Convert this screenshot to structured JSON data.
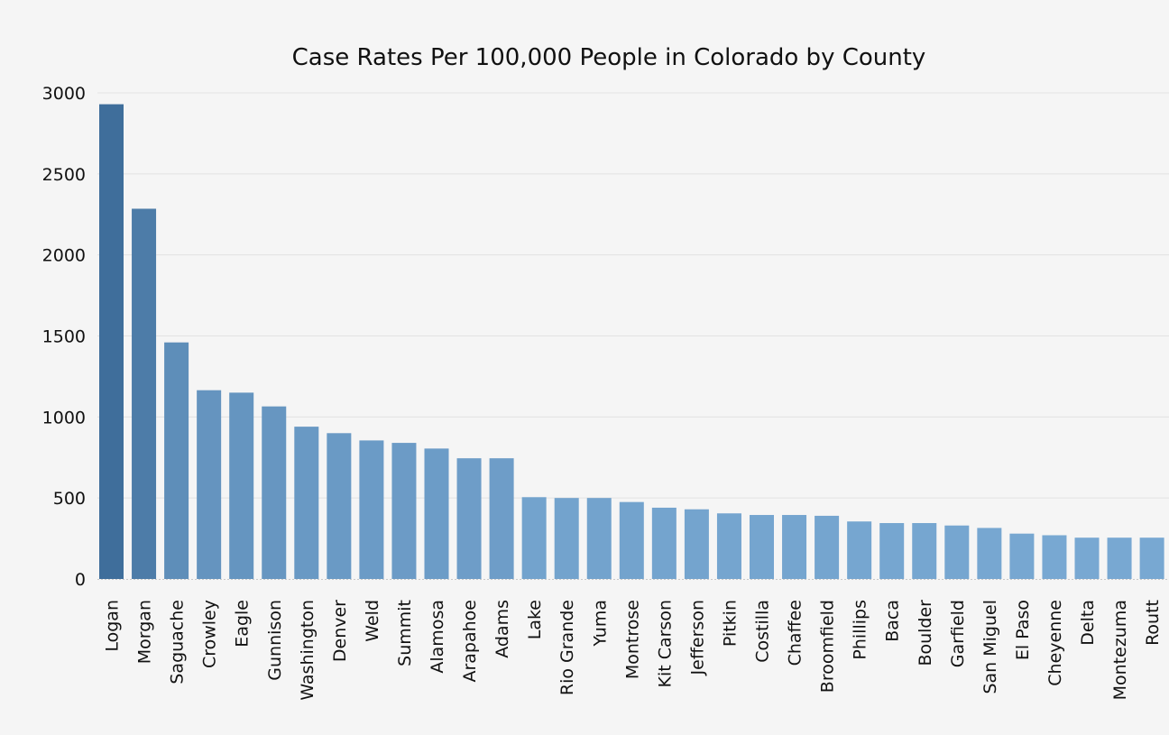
{
  "chart_data": {
    "type": "bar",
    "title": "Case Rates Per 100,000 People in Colorado by County",
    "xlabel": "",
    "ylabel": "",
    "ylim": [
      0,
      3000
    ],
    "yticks": [
      0,
      500,
      1000,
      1500,
      2000,
      2500,
      3000
    ],
    "grid": true,
    "legend": "none",
    "color_dark": "#3f6e9b",
    "color_light": "#78a8d2",
    "categories": [
      "Logan",
      "Morgan",
      "Saguache",
      "Crowley",
      "Eagle",
      "Gunnison",
      "Washington",
      "Denver",
      "Weld",
      "Summit",
      "Alamosa",
      "Arapahoe",
      "Adams",
      "Lake",
      "Rio Grande",
      "Yuma",
      "Montrose",
      "Kit Carson",
      "Jefferson",
      "Pitkin",
      "Costilla",
      "Chaffee",
      "Broomfield",
      "Phillips",
      "Baca",
      "Boulder",
      "Garfield",
      "San Miguel",
      "El Paso",
      "Cheyenne",
      "Delta",
      "Montezuma",
      "Routt"
    ],
    "values": [
      2930,
      2285,
      1460,
      1165,
      1150,
      1065,
      940,
      900,
      855,
      840,
      805,
      745,
      745,
      505,
      500,
      500,
      475,
      440,
      430,
      405,
      395,
      395,
      390,
      355,
      345,
      345,
      330,
      315,
      280,
      270,
      255,
      255,
      255
    ]
  }
}
